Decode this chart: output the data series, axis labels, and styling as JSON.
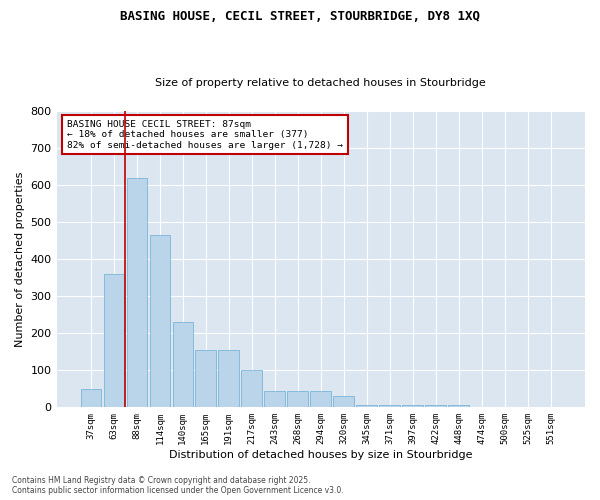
{
  "title1": "BASING HOUSE, CECIL STREET, STOURBRIDGE, DY8 1XQ",
  "title2": "Size of property relative to detached houses in Stourbridge",
  "xlabel": "Distribution of detached houses by size in Stourbridge",
  "ylabel": "Number of detached properties",
  "categories": [
    "37sqm",
    "63sqm",
    "88sqm",
    "114sqm",
    "140sqm",
    "165sqm",
    "191sqm",
    "217sqm",
    "243sqm",
    "268sqm",
    "294sqm",
    "320sqm",
    "345sqm",
    "371sqm",
    "397sqm",
    "422sqm",
    "448sqm",
    "474sqm",
    "500sqm",
    "525sqm",
    "551sqm"
  ],
  "values": [
    50,
    360,
    620,
    465,
    230,
    155,
    155,
    100,
    45,
    45,
    45,
    30,
    5,
    5,
    5,
    5,
    5,
    0,
    0,
    0,
    0
  ],
  "bar_color": "#bad4ea",
  "bar_edge_color": "#6baed6",
  "plot_bg_color": "#dce6f1",
  "fig_bg_color": "#ffffff",
  "grid_color": "#ffffff",
  "vline_color": "#c00000",
  "vline_x_index": 2,
  "annotation_text": "BASING HOUSE CECIL STREET: 87sqm\n← 18% of detached houses are smaller (377)\n82% of semi-detached houses are larger (1,728) →",
  "annotation_box_edge_color": "#c00000",
  "footnote": "Contains HM Land Registry data © Crown copyright and database right 2025.\nContains public sector information licensed under the Open Government Licence v3.0.",
  "ylim": [
    0,
    800
  ],
  "yticks": [
    0,
    100,
    200,
    300,
    400,
    500,
    600,
    700,
    800
  ]
}
